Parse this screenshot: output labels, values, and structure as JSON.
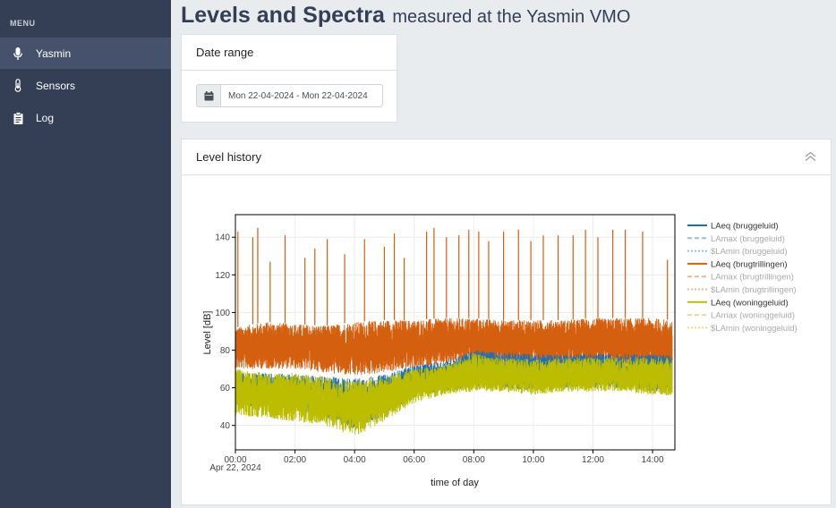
{
  "sidebar": {
    "menu_label": "MENU",
    "items": [
      {
        "label": "Yasmin",
        "icon": "microphone-icon",
        "active": true
      },
      {
        "label": "Sensors",
        "icon": "thermometer-icon",
        "active": false
      },
      {
        "label": "Log",
        "icon": "clipboard-icon",
        "active": false
      }
    ]
  },
  "header": {
    "title": "Levels and Spectra",
    "subtitle": "measured at the Yasmin VMO"
  },
  "date_range": {
    "title": "Date range",
    "value": "Mon 22-04-2024 - Mon 22-04-2024",
    "icon": "calendar-icon"
  },
  "level_history": {
    "title": "Level history",
    "collapse_icon": "chevron-up-icon"
  },
  "colors": {
    "sidebar_bg": "#343f56",
    "bruggeluid": "#1f6fb4",
    "brugtrillingen": "#d35f0f",
    "woninggeluid": "#bcbd00"
  },
  "chart_data": {
    "type": "line",
    "xlabel": "time of day",
    "ylabel": "Level [dB]",
    "x_ticks": [
      "00:00",
      "02:00",
      "04:00",
      "06:00",
      "08:00",
      "10:00",
      "12:00",
      "14:00"
    ],
    "x_date_label": "Apr 22, 2024",
    "xlim": [
      "00:00",
      "14:45"
    ],
    "ylim": [
      27,
      152
    ],
    "y_ticks": [
      40,
      60,
      80,
      100,
      120,
      140
    ],
    "grid": true,
    "legend_position": "right",
    "legend": [
      {
        "name": "LAeq (bruggeluid)",
        "color": "#1f6fb4",
        "dash": "solid",
        "visible": true
      },
      {
        "name": "LAmax (bruggeluid)",
        "color": "#1f6fb4",
        "dash": "dash",
        "visible": false
      },
      {
        "name": "$LAmin (bruggeluid)",
        "color": "#1f6fb4",
        "dash": "dot",
        "visible": false
      },
      {
        "name": "LAeq (brugtrillingen)",
        "color": "#d35f0f",
        "dash": "solid",
        "visible": true
      },
      {
        "name": "LAmax (brugtrillingen)",
        "color": "#d35f0f",
        "dash": "dash",
        "visible": false
      },
      {
        "name": "$LAmin (brugtrillingen)",
        "color": "#d35f0f",
        "dash": "dot",
        "visible": false
      },
      {
        "name": "LAeq (woninggeluid)",
        "color": "#bcbd00",
        "dash": "solid",
        "visible": true
      },
      {
        "name": "LAmax (woninggeluid)",
        "color": "#bcbd00",
        "dash": "dash",
        "visible": false
      },
      {
        "name": "$LAmin (woninggeluid)",
        "color": "#bcbd00",
        "dash": "dot",
        "visible": false
      }
    ],
    "series": [
      {
        "name": "LAeq (brugtrillingen)",
        "color": "#d35f0f",
        "x": [
          "00:00",
          "01:00",
          "02:00",
          "03:00",
          "04:00",
          "05:00",
          "06:00",
          "07:00",
          "08:00",
          "09:00",
          "10:00",
          "11:00",
          "12:00",
          "13:00",
          "14:00",
          "14:40"
        ],
        "low": [
          70,
          70,
          70,
          68,
          66,
          68,
          70,
          72,
          74,
          74,
          72,
          72,
          72,
          72,
          70,
          70
        ],
        "high": [
          92,
          95,
          94,
          93,
          95,
          96,
          96,
          97,
          97,
          96,
          96,
          96,
          97,
          97,
          97,
          96
        ],
        "peaks": [
          {
            "x": "00:05",
            "y": 143
          },
          {
            "x": "00:35",
            "y": 140
          },
          {
            "x": "00:45",
            "y": 145
          },
          {
            "x": "01:10",
            "y": 127
          },
          {
            "x": "01:40",
            "y": 141
          },
          {
            "x": "02:20",
            "y": 129
          },
          {
            "x": "02:40",
            "y": 134
          },
          {
            "x": "03:05",
            "y": 139
          },
          {
            "x": "03:40",
            "y": 131
          },
          {
            "x": "04:20",
            "y": 139
          },
          {
            "x": "05:00",
            "y": 135
          },
          {
            "x": "05:20",
            "y": 142
          },
          {
            "x": "05:40",
            "y": 129
          },
          {
            "x": "06:25",
            "y": 143
          },
          {
            "x": "06:40",
            "y": 145
          },
          {
            "x": "07:05",
            "y": 140
          },
          {
            "x": "07:30",
            "y": 141
          },
          {
            "x": "07:50",
            "y": 144
          },
          {
            "x": "08:10",
            "y": 143
          },
          {
            "x": "08:30",
            "y": 138
          },
          {
            "x": "09:00",
            "y": 143
          },
          {
            "x": "09:30",
            "y": 144
          },
          {
            "x": "09:55",
            "y": 138
          },
          {
            "x": "10:20",
            "y": 141
          },
          {
            "x": "10:50",
            "y": 141
          },
          {
            "x": "11:20",
            "y": 141
          },
          {
            "x": "11:45",
            "y": 144
          },
          {
            "x": "12:10",
            "y": 140
          },
          {
            "x": "12:40",
            "y": 144
          },
          {
            "x": "13:05",
            "y": 144
          },
          {
            "x": "13:40",
            "y": 143
          },
          {
            "x": "14:30",
            "y": 128
          }
        ]
      },
      {
        "name": "LAeq (bruggeluid)",
        "color": "#1f6fb4",
        "x": [
          "00:00",
          "01:00",
          "02:00",
          "03:00",
          "04:00",
          "05:00",
          "06:00",
          "07:00",
          "08:00",
          "09:00",
          "10:00",
          "11:00",
          "12:00",
          "13:00",
          "14:00",
          "14:40"
        ],
        "low": [
          50,
          50,
          48,
          44,
          38,
          45,
          55,
          58,
          60,
          60,
          58,
          60,
          60,
          60,
          58,
          58
        ],
        "high": [
          68,
          68,
          67,
          66,
          65,
          67,
          72,
          74,
          80,
          79,
          78,
          78,
          78,
          78,
          78,
          77
        ]
      },
      {
        "name": "LAeq (woninggeluid)",
        "color": "#bcbd00",
        "x": [
          "00:00",
          "01:00",
          "02:00",
          "03:00",
          "04:00",
          "05:00",
          "06:00",
          "07:00",
          "08:00",
          "09:00",
          "10:00",
          "11:00",
          "12:00",
          "13:00",
          "14:00",
          "14:40"
        ],
        "low": [
          45,
          44,
          42,
          40,
          34,
          42,
          52,
          56,
          58,
          58,
          56,
          58,
          58,
          58,
          56,
          56
        ],
        "high": [
          70,
          68,
          68,
          66,
          64,
          66,
          70,
          72,
          78,
          76,
          75,
          76,
          76,
          76,
          76,
          76
        ]
      }
    ]
  }
}
